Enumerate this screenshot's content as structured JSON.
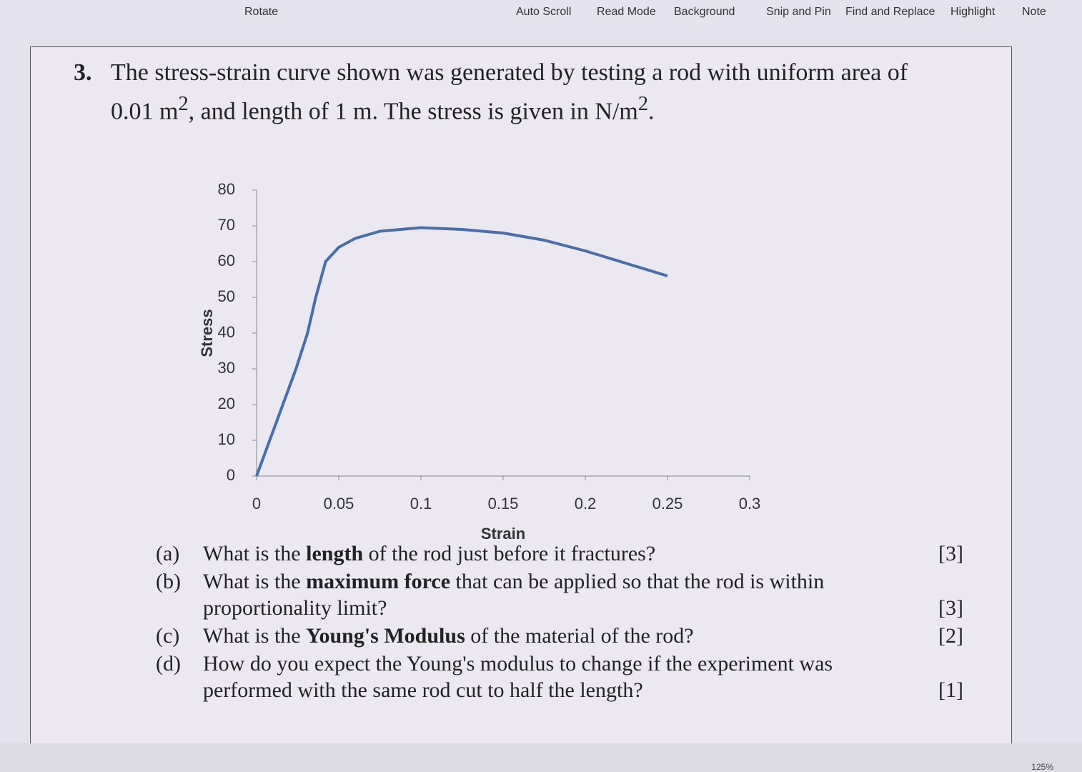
{
  "toolbar": {
    "items": [
      "Rotate",
      "Auto Scroll",
      "Read Mode",
      "Background",
      "Snip and Pin",
      "Find and Replace",
      "Highlight",
      "Note"
    ]
  },
  "statusbar": {
    "zoom": "125%"
  },
  "question": {
    "number": "3.",
    "line1": "The stress-strain curve shown was generated by testing a rod with uniform area of",
    "line2": [
      {
        "text": "0.01 m"
      },
      {
        "text": "2",
        "sup": true
      },
      {
        "text": ", and length of 1 m. The stress is given in N/m"
      },
      {
        "text": "2",
        "sup": true
      },
      {
        "text": "."
      }
    ]
  },
  "chart_data": {
    "type": "line",
    "xlabel": "Strain",
    "ylabel": "Stress",
    "x": [
      0,
      0.008,
      0.016,
      0.024,
      0.031,
      0.036,
      0.042,
      0.05,
      0.06,
      0.075,
      0.1,
      0.125,
      0.15,
      0.175,
      0.2,
      0.225,
      0.25
    ],
    "series": [
      {
        "name": "Stress",
        "color": "#4a6ea8",
        "values": [
          0,
          10,
          20,
          30,
          40,
          50,
          60,
          64,
          66.5,
          68.5,
          69.5,
          69,
          68,
          66,
          63,
          59.5,
          56
        ]
      }
    ],
    "xlim": [
      0,
      0.3
    ],
    "xticks": [
      0,
      0.05,
      0.1,
      0.15,
      0.2,
      0.25,
      0.3
    ],
    "ylim": [
      0,
      80
    ],
    "yticks": [
      0,
      10,
      20,
      30,
      40,
      50,
      60,
      70,
      80
    ],
    "grid": false
  },
  "parts": [
    {
      "label": "(a)",
      "segments": [
        {
          "text": "What is the "
        },
        {
          "text": "length",
          "bold": true
        },
        {
          "text": " of the rod just before it fractures?"
        }
      ],
      "marks": "[3]"
    },
    {
      "label": "(b)",
      "segments": [
        {
          "text": "What is the "
        },
        {
          "text": "maximum force",
          "bold": true
        },
        {
          "text": " that can be applied so that the rod is within proportionality limit?"
        }
      ],
      "marks": "[3]"
    },
    {
      "label": "(c)",
      "segments": [
        {
          "text": "What is the "
        },
        {
          "text": "Young's Modulus",
          "bold": true
        },
        {
          "text": " of the material of the rod?"
        }
      ],
      "marks": "[2]"
    },
    {
      "label": "(d)",
      "segments": [
        {
          "text": "How do you expect the Young's modulus to change if the experiment was performed with the same rod cut to half the length?"
        }
      ],
      "marks": "[1]"
    }
  ]
}
